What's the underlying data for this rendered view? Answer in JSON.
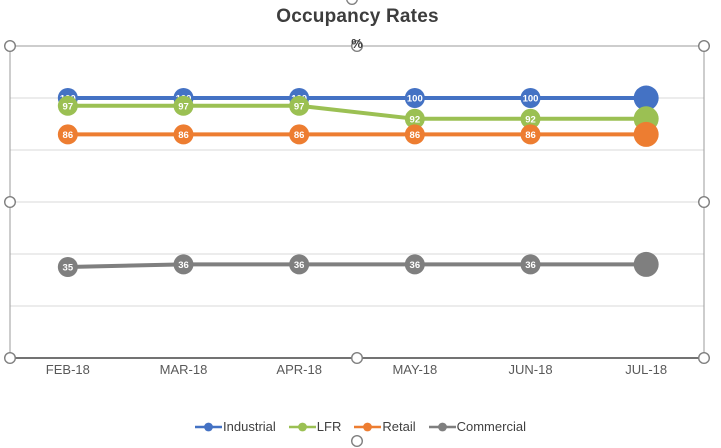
{
  "chart_data": {
    "type": "line",
    "title": "Occupancy Rates",
    "axis_title": "%",
    "categories": [
      "FEB-18",
      "MAR-18",
      "APR-18",
      "MAY-18",
      "JUN-18",
      "JUL-18"
    ],
    "series": [
      {
        "name": "Industrial",
        "color": "#4472C4",
        "values": [
          100,
          100,
          100,
          100,
          100,
          100
        ],
        "labels": [
          "100",
          "100",
          "100",
          "100",
          "100",
          ""
        ]
      },
      {
        "name": "LFR",
        "color": "#9BC053",
        "values": [
          97,
          97,
          97,
          92,
          92,
          92
        ],
        "labels": [
          "97",
          "97",
          "97",
          "92",
          "92",
          ""
        ]
      },
      {
        "name": "Retail",
        "color": "#ED7D31",
        "values": [
          86,
          86,
          86,
          86,
          86,
          86
        ],
        "labels": [
          "86",
          "86",
          "86",
          "86",
          "86",
          ""
        ]
      },
      {
        "name": "Commercial",
        "color": "#7F7F7F",
        "values": [
          35,
          36,
          36,
          36,
          36,
          36
        ],
        "labels": [
          "35",
          "36",
          "36",
          "36",
          "36",
          ""
        ]
      }
    ],
    "ylim": [
      0,
      120
    ],
    "grid_step": 20,
    "grid": true,
    "legend_position": "bottom",
    "data_label_color": "#ffffff"
  },
  "colors": {
    "gridline": "#d9d9d9",
    "axis_line": "#737373",
    "plot_border": "#9b9b9b",
    "tick_label": "#595959",
    "legend_text": "#404040",
    "handle_fill": "#ffffff",
    "handle_stroke": "#7f7f7f"
  }
}
